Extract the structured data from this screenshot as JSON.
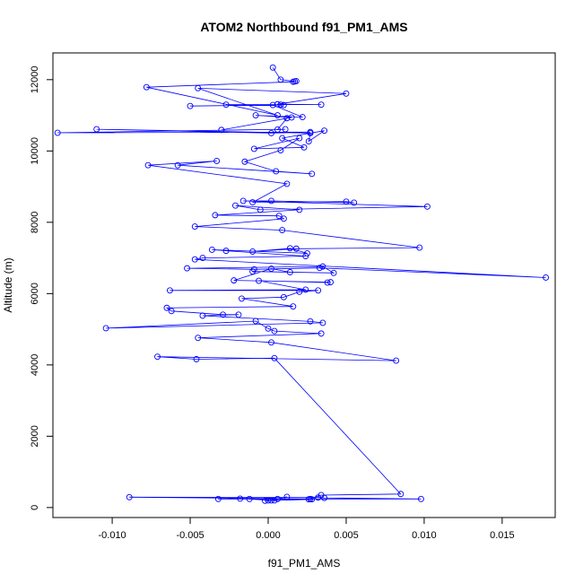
{
  "chart_data": {
    "type": "line",
    "title": "ATOM2 Northbound f91_PM1_AMS",
    "xlabel": "f91_PM1_AMS",
    "ylabel": "Altitude (m)",
    "xlim": [
      -0.0138,
      0.0184
    ],
    "ylim": [
      -280,
      12750
    ],
    "xticks": [
      -0.01,
      -0.005,
      0.0,
      0.005,
      0.01,
      0.015
    ],
    "xtick_labels": [
      "-0.010",
      "-0.005",
      "0.000",
      "0.005",
      "0.010",
      "0.015"
    ],
    "yticks": [
      0,
      2000,
      4000,
      6000,
      8000,
      10000,
      12000
    ],
    "ytick_labels": [
      "0",
      "2000",
      "4000",
      "6000",
      "8000",
      "10000",
      "12000"
    ],
    "grid": false,
    "legend": "none",
    "series_color": "#0000ff",
    "series": [
      {
        "points": [
          [
            0.0003,
            12340
          ],
          [
            0.0008,
            12000
          ],
          [
            0.0017,
            11950
          ],
          [
            0.0018,
            11960
          ],
          [
            0.0016,
            11940
          ],
          [
            -0.0078,
            11790
          ],
          [
            0.0006,
            11000
          ],
          [
            -0.0045,
            11760
          ],
          [
            0.005,
            11610
          ],
          [
            0.0006,
            11310
          ],
          [
            0.0034,
            11300
          ],
          [
            0.0008,
            11300
          ],
          [
            -0.0027,
            11300
          ],
          [
            0.001,
            11290
          ],
          [
            -0.005,
            11260
          ],
          [
            0.0003,
            11290
          ],
          [
            0.0022,
            10950
          ],
          [
            -0.0008,
            11000
          ],
          [
            0.0015,
            10940
          ],
          [
            -0.003,
            10590
          ],
          [
            0.0012,
            10920
          ],
          [
            0.0006,
            10600
          ],
          [
            0.0011,
            10610
          ],
          [
            -0.0135,
            10510
          ],
          [
            0.0027,
            10530
          ],
          [
            0.0002,
            10500
          ],
          [
            -0.011,
            10610
          ],
          [
            0.0027,
            10500
          ],
          [
            0.0026,
            10270
          ],
          [
            0.0036,
            10570
          ],
          [
            0.0009,
            10360
          ],
          [
            0.0023,
            10100
          ],
          [
            -0.0009,
            10060
          ],
          [
            0.002,
            10360
          ],
          [
            0.0008,
            10020
          ],
          [
            -0.0015,
            9700
          ],
          [
            0.0005,
            9430
          ],
          [
            0.0028,
            9360
          ],
          [
            -0.0058,
            9600
          ],
          [
            -0.0033,
            9720
          ],
          [
            -0.0077,
            9600
          ],
          [
            0.0012,
            9080
          ],
          [
            -0.001,
            8560
          ],
          [
            0.005,
            8580
          ],
          [
            0.0055,
            8550
          ],
          [
            0.0002,
            8600
          ],
          [
            -0.0016,
            8600
          ],
          [
            0.0102,
            8440
          ],
          [
            -0.0005,
            8350
          ],
          [
            -0.0021,
            8470
          ],
          [
            0.002,
            8350
          ],
          [
            -0.0034,
            8200
          ],
          [
            0.0007,
            8180
          ],
          [
            0.001,
            8100
          ],
          [
            -0.0047,
            7880
          ],
          [
            0.0009,
            7780
          ],
          [
            0.0097,
            7290
          ],
          [
            0.0018,
            7260
          ],
          [
            -0.001,
            7180
          ],
          [
            0.0014,
            7270
          ],
          [
            0.0025,
            7130
          ],
          [
            -0.0036,
            7230
          ],
          [
            -0.0027,
            7200
          ],
          [
            0.0024,
            7050
          ],
          [
            -0.0042,
            7000
          ],
          [
            -0.0047,
            6960
          ],
          [
            0.0178,
            6450
          ],
          [
            0.0033,
            6720
          ],
          [
            -0.0009,
            6680
          ],
          [
            -0.0052,
            6710
          ],
          [
            0.0035,
            6760
          ],
          [
            0.0042,
            6580
          ],
          [
            -0.001,
            6620
          ],
          [
            0.0014,
            6600
          ],
          [
            0.0002,
            6700
          ],
          [
            -0.0022,
            6370
          ],
          [
            0.004,
            6320
          ],
          [
            0.0038,
            6310
          ],
          [
            -0.0006,
            6360
          ],
          [
            0.0024,
            6110
          ],
          [
            -0.0063,
            6090
          ],
          [
            0.0032,
            6090
          ],
          [
            0.002,
            6050
          ],
          [
            0.001,
            5900
          ],
          [
            -0.0017,
            5860
          ],
          [
            0.0016,
            5640
          ],
          [
            -0.0065,
            5600
          ],
          [
            -0.0062,
            5510
          ],
          [
            -0.0029,
            5410
          ],
          [
            -0.0019,
            5410
          ],
          [
            -0.0042,
            5380
          ],
          [
            0.0027,
            5220
          ],
          [
            0.0035,
            5180
          ],
          [
            -0.0104,
            5030
          ],
          [
            -0.0008,
            5230
          ],
          [
            0.0,
            5020
          ],
          [
            0.0004,
            4950
          ],
          [
            0.0034,
            4880
          ],
          [
            -0.0045,
            4760
          ],
          [
            0.0002,
            4630
          ],
          [
            0.0082,
            4120
          ],
          [
            -0.0071,
            4230
          ],
          [
            -0.0046,
            4160
          ],
          [
            0.0004,
            4190
          ],
          [
            0.0085,
            380
          ],
          [
            0.0034,
            350
          ],
          [
            0.0026,
            230
          ],
          [
            0.0027,
            240
          ],
          [
            -0.0089,
            290
          ],
          [
            0.0032,
            280
          ],
          [
            0.0036,
            270
          ],
          [
            0.0098,
            240
          ],
          [
            -0.0032,
            240
          ],
          [
            -0.0018,
            250
          ],
          [
            0.0002,
            200
          ],
          [
            0.0012,
            300
          ],
          [
            0.0006,
            240
          ],
          [
            0.0004,
            200
          ],
          [
            0.0,
            200
          ],
          [
            -0.0002,
            190
          ],
          [
            0.0028,
            230
          ],
          [
            -0.0012,
            240
          ]
        ]
      }
    ]
  }
}
